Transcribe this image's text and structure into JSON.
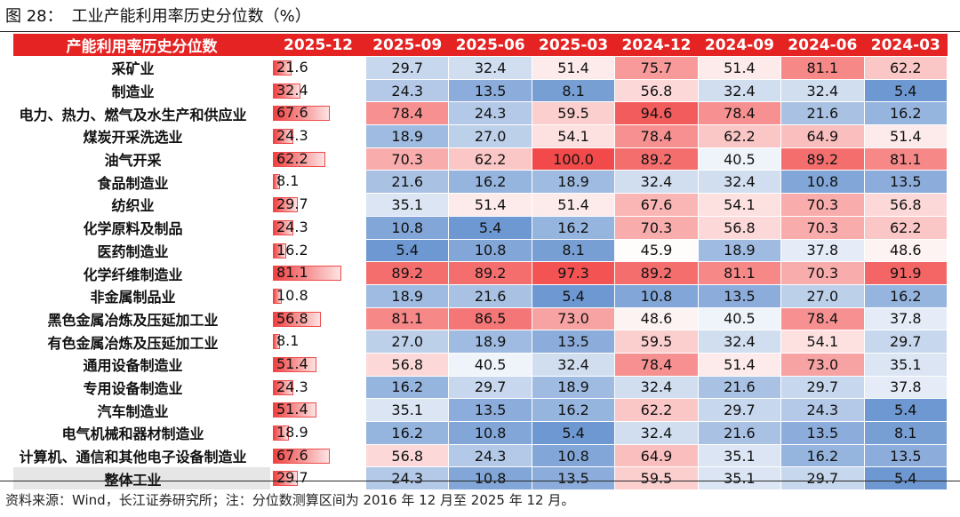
{
  "figure_label": "图 28：",
  "title": "工业产能利用率历史分位数（%）",
  "source_note": "资料来源：Wind，长江证券研究所；注：分位数测算区间为 2016 年 12 月至 2025 年 12 月。",
  "chart_data": {
    "type": "table",
    "header_label": "产能利用率历史分位数",
    "columns": [
      "2025-12",
      "2025-09",
      "2025-06",
      "2025-03",
      "2024-12",
      "2024-09",
      "2024-06",
      "2024-03"
    ],
    "value_range": [
      0,
      100
    ],
    "rows": [
      {
        "name": "采矿业",
        "values": [
          21.6,
          29.7,
          32.4,
          51.4,
          75.7,
          51.4,
          81.1,
          62.2
        ]
      },
      {
        "name": "制造业",
        "values": [
          32.4,
          24.3,
          13.5,
          8.1,
          56.8,
          32.4,
          32.4,
          5.4
        ]
      },
      {
        "name": "电力、热力、燃气及水生产和供应业",
        "values": [
          67.6,
          78.4,
          24.3,
          59.5,
          94.6,
          78.4,
          21.6,
          16.2
        ]
      },
      {
        "name": "煤炭开采洗选业",
        "values": [
          24.3,
          18.9,
          27.0,
          54.1,
          78.4,
          62.2,
          64.9,
          51.4
        ]
      },
      {
        "name": "油气开采",
        "values": [
          62.2,
          70.3,
          62.2,
          100.0,
          89.2,
          40.5,
          89.2,
          81.1
        ]
      },
      {
        "name": "食品制造业",
        "values": [
          8.1,
          21.6,
          16.2,
          18.9,
          32.4,
          32.4,
          10.8,
          13.5
        ]
      },
      {
        "name": "纺织业",
        "values": [
          29.7,
          35.1,
          51.4,
          51.4,
          67.6,
          54.1,
          70.3,
          56.8
        ]
      },
      {
        "name": "化学原料及制品",
        "values": [
          24.3,
          10.8,
          5.4,
          16.2,
          70.3,
          56.8,
          70.3,
          62.2
        ]
      },
      {
        "name": "医药制造业",
        "values": [
          16.2,
          5.4,
          10.8,
          8.1,
          45.9,
          18.9,
          37.8,
          48.6
        ]
      },
      {
        "name": "化学纤维制造业",
        "values": [
          81.1,
          89.2,
          89.2,
          97.3,
          89.2,
          81.1,
          70.3,
          91.9
        ]
      },
      {
        "name": "非金属制品业",
        "values": [
          10.8,
          18.9,
          21.6,
          5.4,
          10.8,
          13.5,
          27.0,
          16.2
        ]
      },
      {
        "name": "黑色金属冶炼及压延加工业",
        "values": [
          56.8,
          81.1,
          86.5,
          73.0,
          48.6,
          40.5,
          78.4,
          37.8
        ]
      },
      {
        "name": "有色金属冶炼及压延加工业",
        "values": [
          8.1,
          27.0,
          18.9,
          13.5,
          59.5,
          32.4,
          54.1,
          29.7
        ]
      },
      {
        "name": "通用设备制造业",
        "values": [
          51.4,
          56.8,
          40.5,
          32.4,
          78.4,
          51.4,
          73.0,
          35.1
        ]
      },
      {
        "name": "专用设备制造业",
        "values": [
          24.3,
          16.2,
          29.7,
          18.9,
          32.4,
          21.6,
          29.7,
          37.8
        ]
      },
      {
        "name": "汽车制造业",
        "values": [
          51.4,
          35.1,
          13.5,
          16.2,
          62.2,
          29.7,
          24.3,
          5.4
        ]
      },
      {
        "name": "电气机械和器材制造业",
        "values": [
          18.9,
          16.2,
          10.8,
          5.4,
          32.4,
          21.6,
          13.5,
          8.1
        ]
      },
      {
        "name": "计算机、通信和其他电子设备制造业",
        "values": [
          67.6,
          56.8,
          24.3,
          10.8,
          64.9,
          35.1,
          16.2,
          13.5
        ]
      },
      {
        "name": "整体工业",
        "values": [
          29.7,
          24.3,
          10.8,
          13.5,
          59.5,
          35.1,
          29.7,
          5.4
        ],
        "is_total": true
      }
    ]
  },
  "colors": {
    "header_bg": "#e52323",
    "header_text": "#ffffff",
    "low": "#5a8acb",
    "mid": "#ffffff",
    "high": "#f24a4a",
    "total_row_bg": "#e6e6e6"
  }
}
